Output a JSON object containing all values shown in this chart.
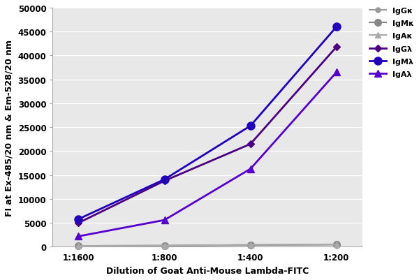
{
  "x_labels": [
    "1:1600",
    "1:800",
    "1:400",
    "1:200"
  ],
  "series": [
    {
      "label": "IgGκ",
      "color": "#999999",
      "marker": "o",
      "marker_size": 5,
      "linewidth": 1.5,
      "linestyle": "-",
      "values": [
        150,
        200,
        350,
        450
      ]
    },
    {
      "label": "IgMκ",
      "color": "#888888",
      "marker": "o",
      "marker_size": 7,
      "linewidth": 1.5,
      "linestyle": "-",
      "values": [
        200,
        250,
        400,
        500
      ]
    },
    {
      "label": "IgAκ",
      "color": "#aaaaaa",
      "marker": "^",
      "marker_size": 6,
      "linewidth": 1.5,
      "linestyle": "-",
      "values": [
        200,
        280,
        420,
        520
      ]
    },
    {
      "label": "IgGλ",
      "color": "#4B0082",
      "marker": "D",
      "marker_size": 5,
      "linewidth": 2.0,
      "linestyle": "-",
      "values": [
        5000,
        13800,
        21500,
        41800
      ]
    },
    {
      "label": "IgMλ",
      "color": "#2200BB",
      "marker": "o",
      "marker_size": 8,
      "linewidth": 2.0,
      "linestyle": "-",
      "values": [
        5800,
        14100,
        25300,
        46000
      ]
    },
    {
      "label": "IgAλ",
      "color": "#5500CC",
      "marker": "^",
      "marker_size": 7,
      "linewidth": 2.0,
      "linestyle": "-",
      "values": [
        2200,
        5600,
        16300,
        36500
      ]
    }
  ],
  "ylabel": "FI at Ex-485/20 nm & Em-528/20 nm",
  "xlabel": "Dilution of Goat Anti-Mouse Lambda-FITC",
  "ylim": [
    0,
    50000
  ],
  "yticks": [
    0,
    5000,
    10000,
    15000,
    20000,
    25000,
    30000,
    35000,
    40000,
    45000,
    50000
  ],
  "background_color": "#ffffff",
  "plot_bg_color": "#e8e8e8",
  "grid_color": "#ffffff",
  "axis_fontsize": 8.5,
  "label_fontsize": 9,
  "legend_fontsize": 8
}
